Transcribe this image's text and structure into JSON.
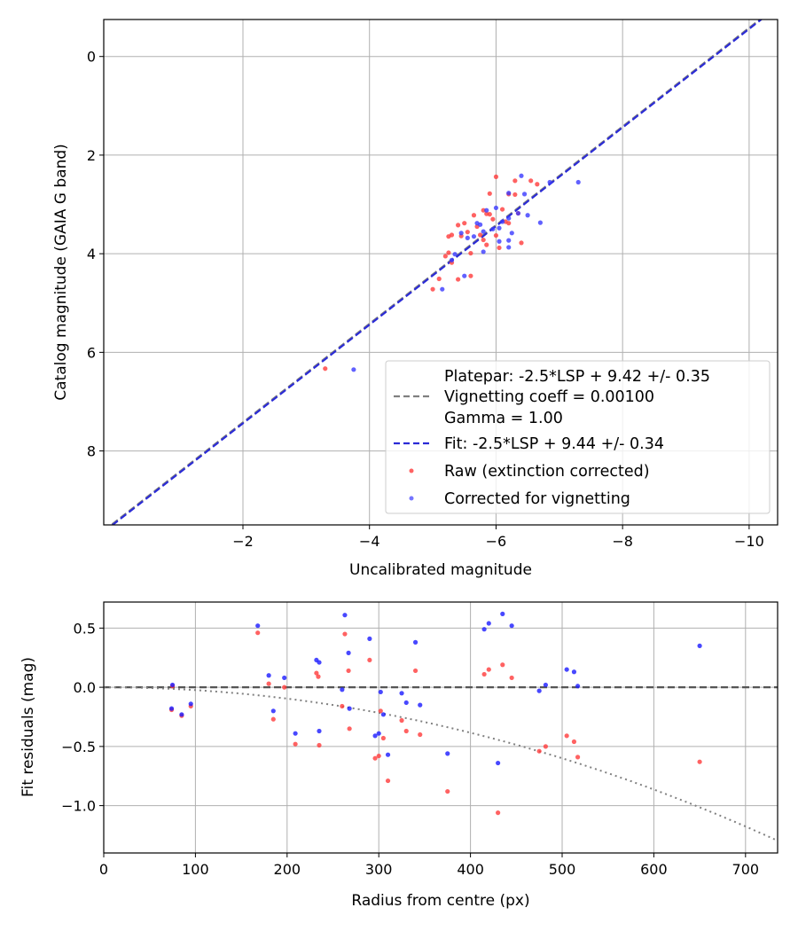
{
  "chart_data": [
    {
      "type": "scatter",
      "xlabel": "Uncalibrated magnitude",
      "ylabel": "Catalog magnitude (GAIA G band)",
      "xlim": [
        0.2,
        -10.45
      ],
      "ylim": [
        9.5,
        -0.75
      ],
      "x_ticks": [
        -2,
        -4,
        -6,
        -8,
        -10
      ],
      "x_tick_labels": [
        "−2",
        "−4",
        "−6",
        "−8",
        "−10"
      ],
      "y_ticks": [
        0,
        2,
        4,
        6,
        8
      ],
      "y_tick_labels": [
        "0",
        "2",
        "4",
        "6",
        "8"
      ],
      "grid": true,
      "legend": {
        "placement": "lower-right",
        "platepar_lines": [
          "Platepar: -2.5*LSP + 9.42 +/- 0.35",
          "Vignetting coeff = 0.00100",
          "Gamma = 1.00"
        ],
        "fit_label": "Fit: -2.5*LSP + 9.44 +/- 0.34",
        "raw_label": "Raw (extinction corrected)",
        "corrected_label": "Corrected for vignetting"
      },
      "lines": [
        {
          "name": "Platepar: -2.5*LSP + 9.42 +/- 0.35",
          "color": "#808080",
          "style": "dashed",
          "intercept": 9.42,
          "slope": 1
        },
        {
          "name": "Fit: -2.5*LSP + 9.44 +/- 0.34",
          "color": "#2b2bd6",
          "style": "dashed",
          "intercept": 9.44,
          "slope": 1
        }
      ],
      "series": [
        {
          "name": "Raw (extinction corrected)",
          "color": "#ff3b3b",
          "points": [
            [
              -3.3,
              6.33
            ],
            [
              -5.0,
              4.72
            ],
            [
              -5.1,
              4.51
            ],
            [
              -5.2,
              4.05
            ],
            [
              -5.25,
              3.98
            ],
            [
              -5.3,
              4.18
            ],
            [
              -5.25,
              3.65
            ],
            [
              -5.3,
              3.62
            ],
            [
              -5.4,
              3.42
            ],
            [
              -5.45,
              3.64
            ],
            [
              -5.5,
              3.38
            ],
            [
              -5.55,
              3.56
            ],
            [
              -5.6,
              3.99
            ],
            [
              -5.65,
              3.22
            ],
            [
              -5.7,
              3.45
            ],
            [
              -5.75,
              3.62
            ],
            [
              -5.8,
              3.12
            ],
            [
              -5.85,
              3.19
            ],
            [
              -5.9,
              3.2
            ],
            [
              -5.85,
              3.82
            ],
            [
              -5.9,
              2.78
            ],
            [
              -5.95,
              3.3
            ],
            [
              -6.0,
              2.44
            ],
            [
              -6.0,
              3.63
            ],
            [
              -6.05,
              3.88
            ],
            [
              -6.15,
              3.35
            ],
            [
              -6.2,
              2.79
            ],
            [
              -6.3,
              2.8
            ],
            [
              -6.3,
              2.52
            ],
            [
              -6.35,
              3.18
            ],
            [
              -6.4,
              3.78
            ],
            [
              -6.55,
              2.52
            ],
            [
              -6.65,
              2.59
            ],
            [
              -5.6,
              4.45
            ],
            [
              -6.2,
              3.38
            ],
            [
              -6.1,
              3.1
            ],
            [
              -5.8,
              3.72
            ],
            [
              -5.4,
              4.52
            ]
          ]
        },
        {
          "name": "Corrected for vignetting",
          "color": "#3a3aff",
          "points": [
            [
              -3.75,
              6.35
            ],
            [
              -5.15,
              4.72
            ],
            [
              -5.3,
              4.13
            ],
            [
              -5.45,
              3.58
            ],
            [
              -5.5,
              4.45
            ],
            [
              -5.55,
              3.68
            ],
            [
              -5.65,
              3.65
            ],
            [
              -5.7,
              3.38
            ],
            [
              -5.75,
              3.41
            ],
            [
              -5.8,
              3.55
            ],
            [
              -5.8,
              3.96
            ],
            [
              -5.85,
              3.12
            ],
            [
              -5.95,
              3.5
            ],
            [
              -6.0,
              3.07
            ],
            [
              -6.05,
              3.75
            ],
            [
              -6.1,
              3.35
            ],
            [
              -6.2,
              2.77
            ],
            [
              -6.2,
              3.73
            ],
            [
              -6.25,
              3.58
            ],
            [
              -6.2,
              3.87
            ],
            [
              -6.35,
              3.18
            ],
            [
              -6.4,
              2.42
            ],
            [
              -6.45,
              2.79
            ],
            [
              -6.5,
              3.22
            ],
            [
              -6.7,
              3.37
            ],
            [
              -6.85,
              2.55
            ],
            [
              -7.3,
              2.55
            ],
            [
              -5.35,
              4.01
            ],
            [
              -6.05,
              3.48
            ],
            [
              -6.2,
              3.28
            ]
          ]
        }
      ]
    },
    {
      "type": "scatter",
      "xlabel": "Radius from centre (px)",
      "ylabel": "Fit residuals (mag)",
      "xlim": [
        0,
        735
      ],
      "ylim": [
        -1.4,
        0.72
      ],
      "x_ticks": [
        0,
        100,
        200,
        300,
        400,
        500,
        600,
        700
      ],
      "x_tick_labels": [
        "0",
        "100",
        "200",
        "300",
        "400",
        "500",
        "600",
        "700"
      ],
      "y_ticks": [
        0.5,
        0.0,
        -0.5,
        -1.0
      ],
      "y_tick_labels": [
        "0.5",
        "0.0",
        "−0.5",
        "−1.0"
      ],
      "grid": true,
      "lines": [
        {
          "name": "zero",
          "color": "#555555",
          "style": "dashed",
          "value": 0
        },
        {
          "name": "vignetting",
          "color": "#808080",
          "style": "dotted",
          "coeff": 0.001
        }
      ],
      "series": [
        {
          "name": "Raw (extinction corrected)",
          "color": "#ff3b3b",
          "points": [
            [
              74,
              -0.19
            ],
            [
              75,
              0.01
            ],
            [
              85,
              -0.24
            ],
            [
              95,
              -0.16
            ],
            [
              168,
              0.46
            ],
            [
              180,
              0.03
            ],
            [
              185,
              -0.27
            ],
            [
              197,
              0.0
            ],
            [
              209,
              -0.48
            ],
            [
              232,
              0.12
            ],
            [
              234,
              0.09
            ],
            [
              235,
              -0.49
            ],
            [
              260,
              -0.16
            ],
            [
              263,
              0.45
            ],
            [
              267,
              0.14
            ],
            [
              268,
              -0.35
            ],
            [
              290,
              0.23
            ],
            [
              296,
              -0.6
            ],
            [
              300,
              -0.58
            ],
            [
              302,
              -0.2
            ],
            [
              305,
              -0.43
            ],
            [
              310,
              -0.79
            ],
            [
              325,
              -0.28
            ],
            [
              330,
              -0.37
            ],
            [
              340,
              0.14
            ],
            [
              345,
              -0.4
            ],
            [
              375,
              -0.88
            ],
            [
              415,
              0.11
            ],
            [
              420,
              0.15
            ],
            [
              430,
              -1.06
            ],
            [
              435,
              0.19
            ],
            [
              445,
              0.08
            ],
            [
              475,
              -0.54
            ],
            [
              482,
              -0.5
            ],
            [
              505,
              -0.41
            ],
            [
              513,
              -0.46
            ],
            [
              517,
              -0.59
            ],
            [
              650,
              -0.63
            ]
          ]
        },
        {
          "name": "Corrected for vignetting",
          "color": "#1a1aff",
          "points": [
            [
              74,
              -0.18
            ],
            [
              75,
              0.02
            ],
            [
              85,
              -0.23
            ],
            [
              95,
              -0.14
            ],
            [
              168,
              0.52
            ],
            [
              180,
              0.1
            ],
            [
              185,
              -0.2
            ],
            [
              197,
              0.08
            ],
            [
              209,
              -0.39
            ],
            [
              232,
              0.23
            ],
            [
              235,
              0.21
            ],
            [
              235,
              -0.37
            ],
            [
              260,
              -0.02
            ],
            [
              263,
              0.61
            ],
            [
              267,
              0.29
            ],
            [
              268,
              -0.18
            ],
            [
              290,
              0.41
            ],
            [
              296,
              -0.41
            ],
            [
              300,
              -0.39
            ],
            [
              302,
              -0.04
            ],
            [
              305,
              -0.23
            ],
            [
              310,
              -0.57
            ],
            [
              325,
              -0.05
            ],
            [
              330,
              -0.13
            ],
            [
              340,
              0.38
            ],
            [
              345,
              -0.15
            ],
            [
              375,
              -0.56
            ],
            [
              415,
              0.49
            ],
            [
              420,
              0.54
            ],
            [
              430,
              -0.64
            ],
            [
              435,
              0.62
            ],
            [
              445,
              0.52
            ],
            [
              475,
              -0.03
            ],
            [
              482,
              0.02
            ],
            [
              505,
              0.15
            ],
            [
              513,
              0.13
            ],
            [
              517,
              0.01
            ],
            [
              650,
              0.35
            ]
          ]
        }
      ]
    }
  ]
}
